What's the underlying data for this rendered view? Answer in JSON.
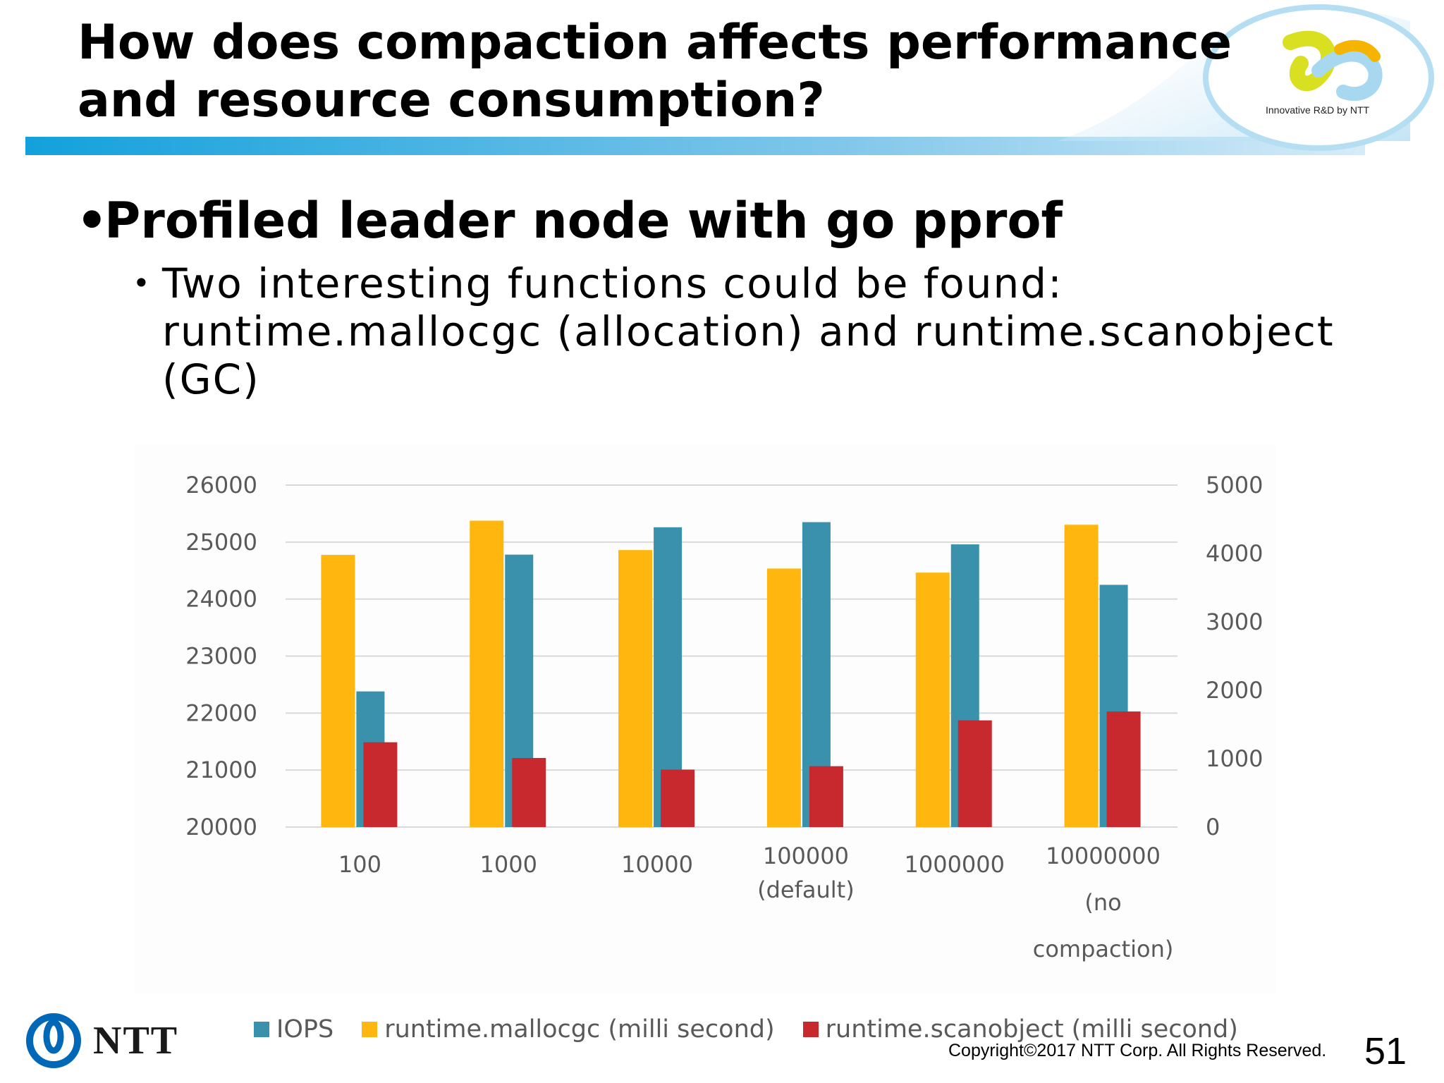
{
  "slide": {
    "title": "How does compaction affects performance and resource consumption?",
    "logo_caption": "Innovative R&D by NTT",
    "bullet_main": "Profiled leader node with go pprof",
    "bullet_sub": "Two interesting functions could be found: runtime.mallocgc (allocation) and runtime.scanobject (GC)",
    "bullet_char": "•",
    "copyright": "Copyright©2017  NTT Corp. All Rights Reserved.",
    "page_number": "51",
    "company_logo_text": "NTT"
  },
  "colors": {
    "iops": "#3a91ac",
    "mallocgc": "#ffb60f",
    "scanobject": "#c8292e",
    "header_bar": "#1aa3d8",
    "gridline": "#d9d9d9",
    "tick_label": "#595959"
  },
  "chart_data": {
    "type": "bar",
    "categories": [
      [
        "100"
      ],
      [
        "1000"
      ],
      [
        "10000"
      ],
      [
        "100000",
        "(default)"
      ],
      [
        "1000000"
      ],
      [
        "10000000",
        "(no",
        "compaction)"
      ]
    ],
    "series": [
      {
        "name": "IOPS",
        "axis": "left",
        "values": [
          22380,
          24780,
          25260,
          25350,
          24960,
          24250
        ]
      },
      {
        "name": "runtime.mallocgc (milli second)",
        "axis": "right",
        "values": [
          3980,
          4480,
          4050,
          3780,
          3720,
          4420
        ]
      },
      {
        "name": "runtime.scanobject (milli second)",
        "axis": "right",
        "values": [
          1240,
          1010,
          840,
          890,
          1560,
          1690
        ]
      }
    ],
    "y_left": {
      "min": 20000,
      "max": 26000,
      "ticks": [
        "20000",
        "21000",
        "22000",
        "23000",
        "24000",
        "25000",
        "26000"
      ]
    },
    "y_right": {
      "min": 0,
      "max": 5000,
      "ticks": [
        "0",
        "1000",
        "2000",
        "3000",
        "4000",
        "5000"
      ]
    },
    "grid": true,
    "legend_position": "bottom"
  }
}
